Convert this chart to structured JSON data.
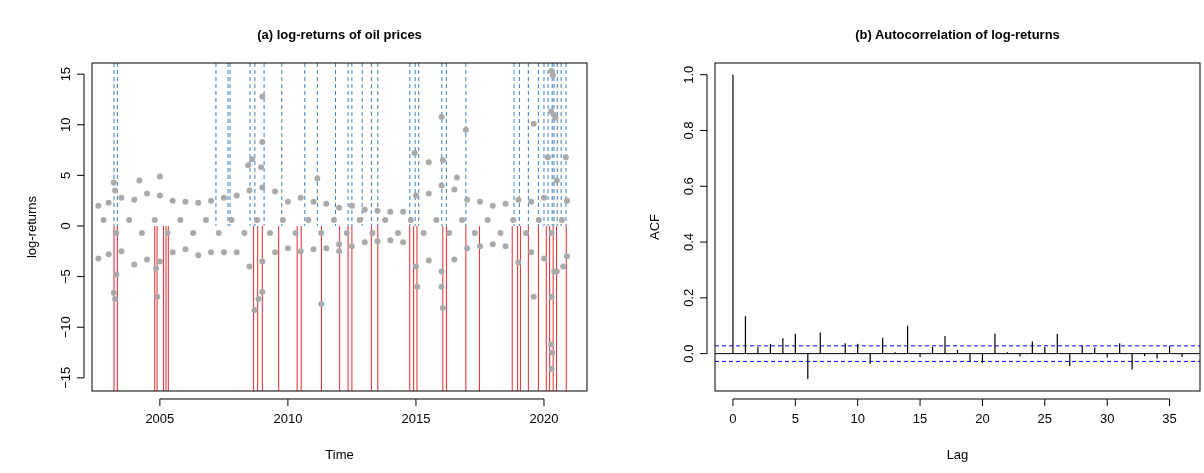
{
  "chart_data": [
    {
      "type": "scatter",
      "title": "(a) log-returns of oil prices",
      "xlabel": "Time",
      "ylabel": "log-returns",
      "xlim": [
        2002.35,
        2021.68
      ],
      "ylim": [
        -16.3,
        16.1
      ],
      "xticks": [
        2005,
        2010,
        2015,
        2020
      ],
      "yticks": [
        -15,
        -10,
        -5,
        0,
        5,
        10,
        15
      ],
      "marker": "circle",
      "grid": false,
      "series": [
        {
          "color": "#aaaaaa",
          "x": [
            2002.6,
            2002.6,
            2003.0,
            2003.0,
            2003.5,
            2003.5,
            2004.0,
            2004.0,
            2004.5,
            2004.5,
            2005.0,
            2005.0,
            2005.5,
            2005.5,
            2006.0,
            2006.0,
            2006.5,
            2006.5,
            2007.0,
            2007.0,
            2007.5,
            2007.5,
            2008.0,
            2008.0,
            2008.5,
            2008.5,
            2009.0,
            2009.0,
            2009.5,
            2009.5,
            2010.0,
            2010.0,
            2010.5,
            2010.5,
            2011.0,
            2011.0,
            2011.5,
            2011.5,
            2012.0,
            2012.0,
            2012.5,
            2012.5,
            2013.0,
            2013.0,
            2013.5,
            2013.5,
            2014.0,
            2014.0,
            2014.5,
            2014.5,
            2015.0,
            2015.0,
            2015.5,
            2015.5,
            2016.0,
            2016.0,
            2016.5,
            2016.5,
            2017.0,
            2017.0,
            2017.5,
            2017.5,
            2018.0,
            2018.0,
            2018.5,
            2018.5,
            2019.0,
            2019.0,
            2019.5,
            2019.5,
            2020.0,
            2020.0,
            2020.5,
            2020.5,
            2020.9,
            2020.9,
            2002.8,
            2003.3,
            2003.8,
            2004.3,
            2004.8,
            2005.3,
            2005.8,
            2006.3,
            2006.8,
            2007.3,
            2007.8,
            2008.3,
            2008.8,
            2009.3,
            2009.8,
            2010.3,
            2010.8,
            2011.3,
            2011.8,
            2012.3,
            2012.8,
            2013.3,
            2013.8,
            2014.3,
            2014.8,
            2015.3,
            2015.8,
            2016.3,
            2016.8,
            2017.3,
            2017.8,
            2018.3,
            2018.8,
            2019.3,
            2019.8,
            2020.3,
            2020.7,
            2003.2,
            2003.25,
            2003.2,
            2003.25,
            2003.3,
            2004.2,
            2005.0,
            2004.85,
            2004.9,
            2008.45,
            2008.6,
            2008.95,
            2009.0,
            2009.0,
            2008.7,
            2008.85,
            2009.0,
            2011.15,
            2011.3,
            2012.0,
            2014.95,
            2015.05,
            2015.5,
            2016.0,
            2016.05,
            2016.05,
            2016.0,
            2016.95,
            2016.6,
            2019.6,
            2019.6,
            2020.15,
            2020.28,
            2020.3,
            2020.35,
            2020.38,
            2020.45,
            2020.3,
            2020.28,
            2020.32,
            2020.3,
            2020.85,
            2020.4,
            2020.75
          ],
          "values": [
            2.0,
            -3.2,
            2.3,
            -2.8,
            2.8,
            -2.5,
            2.6,
            -3.8,
            3.2,
            -3.3,
            3.0,
            -3.5,
            2.5,
            -2.6,
            2.4,
            -2.3,
            2.3,
            -2.9,
            2.5,
            -2.6,
            2.8,
            -2.6,
            3.0,
            -2.6,
            3.5,
            -4.0,
            3.8,
            -3.5,
            3.4,
            -2.6,
            2.4,
            -2.2,
            2.8,
            -2.5,
            2.4,
            -2.3,
            2.2,
            -2.2,
            1.8,
            -1.8,
            2.0,
            -2.0,
            1.6,
            -1.6,
            1.5,
            -1.5,
            1.4,
            -1.4,
            1.4,
            -1.6,
            3.0,
            -4.0,
            3.2,
            -3.4,
            4.0,
            -4.5,
            3.6,
            -3.3,
            2.6,
            -2.2,
            2.4,
            -2.0,
            2.0,
            -1.8,
            2.2,
            -2.0,
            2.6,
            -3.6,
            2.4,
            -2.6,
            2.8,
            -3.2,
            4.5,
            -4.5,
            2.5,
            -3.0,
            0.6,
            -0.7,
            0.6,
            -0.7,
            0.6,
            -0.7,
            0.6,
            -0.7,
            0.6,
            -0.7,
            0.6,
            -0.7,
            0.6,
            -0.7,
            0.6,
            -0.7,
            0.6,
            -0.7,
            0.6,
            -0.7,
            0.6,
            -0.7,
            0.6,
            -0.7,
            0.6,
            -0.7,
            0.6,
            -0.7,
            0.6,
            -0.7,
            0.6,
            -0.7,
            0.6,
            -0.7,
            0.6,
            -0.7,
            0.6,
            4.3,
            3.5,
            -6.6,
            -7.2,
            -4.8,
            4.5,
            4.9,
            -4.2,
            -7.0,
            6.0,
            6.6,
            5.8,
            12.8,
            8.3,
            -8.3,
            -7.2,
            -6.5,
            4.7,
            -7.7,
            -2.5,
            7.2,
            -6.0,
            6.3,
            10.8,
            6.5,
            -8.1,
            -6.0,
            9.5,
            4.8,
            10.1,
            -7.0,
            6.8,
            11.3,
            15.3,
            14.9,
            11.0,
            10.7,
            -7.0,
            -11.7,
            -12.5,
            -14.1,
            6.8,
            -4.5,
            -4.0
          ]
        }
      ],
      "ref_lines": [
        {
          "axis": "x",
          "value": 2003.21,
          "color": "#3b7dbf",
          "line_style": "dashed"
        },
        {
          "axis": "x",
          "value": 2003.34,
          "color": "#3b7dbf",
          "line_style": "dashed"
        },
        {
          "axis": "x",
          "value": 2007.19,
          "color": "#3b7dbf",
          "line_style": "dashed"
        },
        {
          "axis": "x",
          "value": 2007.66,
          "color": "#3b7dbf",
          "line_style": "dashed"
        },
        {
          "axis": "x",
          "value": 2007.74,
          "color": "#3b7dbf",
          "line_style": "dashed"
        },
        {
          "axis": "x",
          "value": 2008.52,
          "color": "#3b7dbf",
          "line_style": "dashed"
        },
        {
          "axis": "x",
          "value": 2008.71,
          "color": "#3b7dbf",
          "line_style": "dashed"
        },
        {
          "axis": "x",
          "value": 2009.07,
          "color": "#3b7dbf",
          "line_style": "dashed"
        },
        {
          "axis": "x",
          "value": 2009.76,
          "color": "#3b7dbf",
          "line_style": "dashed"
        },
        {
          "axis": "x",
          "value": 2010.66,
          "color": "#3b7dbf",
          "line_style": "dashed"
        },
        {
          "axis": "x",
          "value": 2011.15,
          "color": "#3b7dbf",
          "line_style": "dashed"
        },
        {
          "axis": "x",
          "value": 2011.86,
          "color": "#3b7dbf",
          "line_style": "dashed"
        },
        {
          "axis": "x",
          "value": 2012.35,
          "color": "#3b7dbf",
          "line_style": "dashed"
        },
        {
          "axis": "x",
          "value": 2012.5,
          "color": "#3b7dbf",
          "line_style": "dashed"
        },
        {
          "axis": "x",
          "value": 2012.9,
          "color": "#3b7dbf",
          "line_style": "dashed"
        },
        {
          "axis": "x",
          "value": 2013.26,
          "color": "#3b7dbf",
          "line_style": "dashed"
        },
        {
          "axis": "x",
          "value": 2013.51,
          "color": "#3b7dbf",
          "line_style": "dashed"
        },
        {
          "axis": "x",
          "value": 2014.76,
          "color": "#3b7dbf",
          "line_style": "dashed"
        },
        {
          "axis": "x",
          "value": 2014.97,
          "color": "#3b7dbf",
          "line_style": "dashed"
        },
        {
          "axis": "x",
          "value": 2015.11,
          "color": "#3b7dbf",
          "line_style": "dashed"
        },
        {
          "axis": "x",
          "value": 2016.01,
          "color": "#3b7dbf",
          "line_style": "dashed"
        },
        {
          "axis": "x",
          "value": 2016.19,
          "color": "#3b7dbf",
          "line_style": "dashed"
        },
        {
          "axis": "x",
          "value": 2016.95,
          "color": "#3b7dbf",
          "line_style": "dashed"
        },
        {
          "axis": "x",
          "value": 2018.83,
          "color": "#3b7dbf",
          "line_style": "dashed"
        },
        {
          "axis": "x",
          "value": 2019.04,
          "color": "#3b7dbf",
          "line_style": "dashed"
        },
        {
          "axis": "x",
          "value": 2019.39,
          "color": "#3b7dbf",
          "line_style": "dashed"
        },
        {
          "axis": "x",
          "value": 2019.78,
          "color": "#3b7dbf",
          "line_style": "dashed"
        },
        {
          "axis": "x",
          "value": 2020.0,
          "color": "#3b7dbf",
          "line_style": "dashed"
        },
        {
          "axis": "x",
          "value": 2020.16,
          "color": "#3b7dbf",
          "line_style": "dashed"
        },
        {
          "axis": "x",
          "value": 2020.32,
          "color": "#3b7dbf",
          "line_style": "dashed"
        },
        {
          "axis": "x",
          "value": 2020.39,
          "color": "#3b7dbf",
          "line_style": "dashed"
        },
        {
          "axis": "x",
          "value": 2020.52,
          "color": "#3b7dbf",
          "line_style": "dashed"
        },
        {
          "axis": "x",
          "value": 2020.67,
          "color": "#3b7dbf",
          "line_style": "dashed"
        },
        {
          "axis": "x",
          "value": 2020.86,
          "color": "#3b7dbf",
          "line_style": "dashed"
        },
        {
          "axis": "x",
          "value": 2003.21,
          "color": "#e8292e",
          "line_style": "solid"
        },
        {
          "axis": "x",
          "value": 2003.34,
          "color": "#e8292e",
          "line_style": "solid"
        },
        {
          "axis": "x",
          "value": 2004.8,
          "color": "#e8292e",
          "line_style": "solid"
        },
        {
          "axis": "x",
          "value": 2004.89,
          "color": "#e8292e",
          "line_style": "solid"
        },
        {
          "axis": "x",
          "value": 2005.14,
          "color": "#e8292e",
          "line_style": "solid"
        },
        {
          "axis": "x",
          "value": 2005.24,
          "color": "#e8292e",
          "line_style": "solid"
        },
        {
          "axis": "x",
          "value": 2005.33,
          "color": "#e8292e",
          "line_style": "solid"
        },
        {
          "axis": "x",
          "value": 2008.66,
          "color": "#e8292e",
          "line_style": "solid"
        },
        {
          "axis": "x",
          "value": 2008.82,
          "color": "#e8292e",
          "line_style": "solid"
        },
        {
          "axis": "x",
          "value": 2009.0,
          "color": "#e8292e",
          "line_style": "solid"
        },
        {
          "axis": "x",
          "value": 2009.64,
          "color": "#e8292e",
          "line_style": "solid"
        },
        {
          "axis": "x",
          "value": 2010.36,
          "color": "#e8292e",
          "line_style": "solid"
        },
        {
          "axis": "x",
          "value": 2010.52,
          "color": "#e8292e",
          "line_style": "solid"
        },
        {
          "axis": "x",
          "value": 2011.31,
          "color": "#e8292e",
          "line_style": "solid"
        },
        {
          "axis": "x",
          "value": 2012.02,
          "color": "#e8292e",
          "line_style": "solid"
        },
        {
          "axis": "x",
          "value": 2012.35,
          "color": "#e8292e",
          "line_style": "solid"
        },
        {
          "axis": "x",
          "value": 2012.5,
          "color": "#e8292e",
          "line_style": "solid"
        },
        {
          "axis": "x",
          "value": 2013.26,
          "color": "#e8292e",
          "line_style": "solid"
        },
        {
          "axis": "x",
          "value": 2013.51,
          "color": "#e8292e",
          "line_style": "solid"
        },
        {
          "axis": "x",
          "value": 2014.76,
          "color": "#e8292e",
          "line_style": "solid"
        },
        {
          "axis": "x",
          "value": 2014.91,
          "color": "#e8292e",
          "line_style": "solid"
        },
        {
          "axis": "x",
          "value": 2015.04,
          "color": "#e8292e",
          "line_style": "solid"
        },
        {
          "axis": "x",
          "value": 2016.05,
          "color": "#e8292e",
          "line_style": "solid"
        },
        {
          "axis": "x",
          "value": 2016.19,
          "color": "#e8292e",
          "line_style": "solid"
        },
        {
          "axis": "x",
          "value": 2016.95,
          "color": "#e8292e",
          "line_style": "solid"
        },
        {
          "axis": "x",
          "value": 2017.48,
          "color": "#e8292e",
          "line_style": "solid"
        },
        {
          "axis": "x",
          "value": 2018.76,
          "color": "#e8292e",
          "line_style": "solid"
        },
        {
          "axis": "x",
          "value": 2018.97,
          "color": "#e8292e",
          "line_style": "solid"
        },
        {
          "axis": "x",
          "value": 2019.08,
          "color": "#e8292e",
          "line_style": "solid"
        },
        {
          "axis": "x",
          "value": 2019.39,
          "color": "#e8292e",
          "line_style": "solid"
        },
        {
          "axis": "x",
          "value": 2019.78,
          "color": "#e8292e",
          "line_style": "solid"
        },
        {
          "axis": "x",
          "value": 2020.09,
          "color": "#e8292e",
          "line_style": "solid"
        },
        {
          "axis": "x",
          "value": 2020.22,
          "color": "#e8292e",
          "line_style": "solid"
        },
        {
          "axis": "x",
          "value": 2020.36,
          "color": "#e8292e",
          "line_style": "solid"
        },
        {
          "axis": "x",
          "value": 2020.49,
          "color": "#e8292e",
          "line_style": "solid"
        },
        {
          "axis": "x",
          "value": 2020.87,
          "color": "#e8292e",
          "line_style": "solid"
        }
      ]
    },
    {
      "type": "bar",
      "title": "(b) Autocorrelation of log-returns",
      "xlabel": "Lag",
      "ylabel": "ACF",
      "xlim": [
        -1.44,
        37.44
      ],
      "ylim": [
        -0.134,
        1.042
      ],
      "xticks": [
        0,
        5,
        10,
        15,
        20,
        25,
        30,
        35
      ],
      "yticks": [
        {
          "value": 0,
          "label": "0.0"
        },
        {
          "value": 0.2,
          "label": "0.2"
        },
        {
          "value": 0.4,
          "label": "0.4"
        },
        {
          "value": 0.6,
          "label": "0.6"
        },
        {
          "value": 0.8,
          "label": "0.8"
        },
        {
          "value": 1,
          "label": "1.0"
        }
      ],
      "grid": false,
      "x": [
        0,
        1,
        2,
        3,
        4,
        5,
        6,
        7,
        8,
        9,
        10,
        11,
        12,
        13,
        14,
        15,
        16,
        17,
        18,
        19,
        20,
        21,
        22,
        23,
        24,
        25,
        26,
        27,
        28,
        29,
        30,
        31,
        32,
        33,
        34,
        35,
        36
      ],
      "series": [
        {
          "color": "#000000",
          "values": [
            1.0,
            0.134,
            0.024,
            0.035,
            0.055,
            0.071,
            -0.091,
            0.076,
            null,
            0.037,
            0.035,
            -0.037,
            0.057,
            0.005,
            0.1,
            -0.012,
            0.024,
            0.063,
            0.013,
            -0.03,
            -0.033,
            0.072,
            0.005,
            -0.01,
            0.044,
            0.024,
            0.071,
            -0.045,
            0.028,
            0.022,
            -0.014,
            0.037,
            -0.057,
            -0.009,
            -0.018,
            0.028,
            -0.012
          ]
        }
      ],
      "ref_lines": [
        {
          "axis": "y",
          "value": 0,
          "color": "#000000",
          "line_style": "solid"
        },
        {
          "axis": "y",
          "value": 0.028,
          "color": "#0000ff",
          "line_style": "dashed"
        },
        {
          "axis": "y",
          "value": -0.028,
          "color": "#0000ff",
          "line_style": "dashed"
        }
      ]
    }
  ]
}
